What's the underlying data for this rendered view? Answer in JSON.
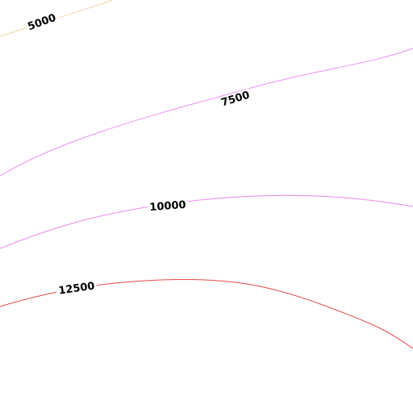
{
  "chart_data": {
    "type": "contour",
    "levels": [
      5000,
      7500,
      10000,
      12500
    ],
    "colors": [
      "#f0d8a8",
      "#e890f0",
      "#e888e8",
      "#e84848"
    ]
  }
}
